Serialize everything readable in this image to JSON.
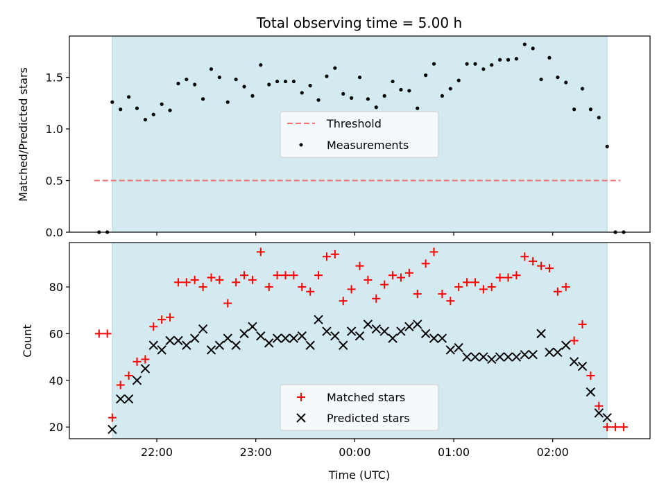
{
  "chart_data": [
    {
      "type": "scatter",
      "panel": "top",
      "title": "Total observing time = 5.00 h",
      "xlabel": "",
      "ylabel": "Matched/Predicted stars",
      "x_axis": "time",
      "xlim": [
        "21:07",
        "02:59"
      ],
      "ylim": [
        0,
        1.9
      ],
      "yticks": [
        0.0,
        0.5,
        1.0,
        1.5
      ],
      "yticklabels": [
        "0.0",
        "0.5",
        "1.0",
        "1.5"
      ],
      "xticks": [
        "22:00",
        "23:00",
        "00:00",
        "01:00",
        "02:00"
      ],
      "shaded_span": [
        "21:33",
        "02:33"
      ],
      "shaded_color": "#d4eaf1",
      "legend_position": "center",
      "series": [
        {
          "name": "Threshold",
          "kind": "dashed-line",
          "color": "#f47070",
          "x": [
            "21:22",
            "02:41"
          ],
          "y": [
            0.5,
            0.5
          ]
        },
        {
          "name": "Measurements",
          "kind": "dots",
          "color": "#000000",
          "x": [
            "21:25",
            "21:30",
            "21:33",
            "21:38",
            "21:43",
            "21:48",
            "21:53",
            "21:58",
            "22:03",
            "22:08",
            "22:13",
            "22:18",
            "22:23",
            "22:28",
            "22:33",
            "22:38",
            "22:43",
            "22:48",
            "22:53",
            "22:58",
            "23:03",
            "23:08",
            "23:13",
            "23:18",
            "23:23",
            "23:28",
            "23:33",
            "23:38",
            "23:43",
            "23:48",
            "23:53",
            "23:58",
            "00:03",
            "00:08",
            "00:13",
            "00:18",
            "00:23",
            "00:28",
            "00:33",
            "00:38",
            "00:43",
            "00:48",
            "00:53",
            "00:58",
            "01:03",
            "01:08",
            "01:13",
            "01:18",
            "01:23",
            "01:28",
            "01:33",
            "01:38",
            "01:43",
            "01:48",
            "01:53",
            "01:58",
            "02:03",
            "02:08",
            "02:13",
            "02:18",
            "02:23",
            "02:28",
            "02:33",
            "02:38",
            "02:43"
          ],
          "y": [
            0.0,
            0.0,
            1.26,
            1.19,
            1.31,
            1.2,
            1.09,
            1.14,
            1.24,
            1.18,
            1.44,
            1.48,
            1.43,
            1.29,
            1.58,
            1.5,
            1.26,
            1.48,
            1.41,
            1.32,
            1.62,
            1.43,
            1.46,
            1.46,
            1.46,
            1.35,
            1.42,
            1.28,
            1.51,
            1.59,
            1.34,
            1.3,
            1.5,
            1.29,
            1.21,
            1.32,
            1.46,
            1.38,
            1.37,
            1.2,
            1.52,
            1.63,
            1.32,
            1.39,
            1.47,
            1.63,
            1.63,
            1.58,
            1.62,
            1.67,
            1.67,
            1.68,
            1.82,
            1.78,
            1.48,
            1.69,
            1.5,
            1.45,
            1.19,
            1.39,
            1.19,
            1.11,
            0.83,
            0.0,
            0.0
          ]
        }
      ]
    },
    {
      "type": "scatter",
      "panel": "bottom",
      "xlabel": "Time (UTC)",
      "ylabel": "Count",
      "x_axis": "time",
      "xlim": [
        "21:07",
        "02:59"
      ],
      "ylim": [
        15,
        99
      ],
      "yticks": [
        20,
        40,
        60,
        80
      ],
      "yticklabels": [
        "20",
        "40",
        "60",
        "80"
      ],
      "xticks": [
        "22:00",
        "23:00",
        "00:00",
        "01:00",
        "02:00"
      ],
      "shaded_span": [
        "21:33",
        "02:33"
      ],
      "shaded_color": "#d4eaf1",
      "legend_position": "bottom-center",
      "series": [
        {
          "name": "Matched stars",
          "kind": "plus",
          "color": "#ff0000",
          "x": [
            "21:25",
            "21:30",
            "21:33",
            "21:38",
            "21:43",
            "21:48",
            "21:53",
            "21:58",
            "22:03",
            "22:08",
            "22:13",
            "22:18",
            "22:23",
            "22:28",
            "22:33",
            "22:38",
            "22:43",
            "22:48",
            "22:53",
            "22:58",
            "23:03",
            "23:08",
            "23:13",
            "23:18",
            "23:23",
            "23:28",
            "23:33",
            "23:38",
            "23:43",
            "23:48",
            "23:53",
            "23:58",
            "00:03",
            "00:08",
            "00:13",
            "00:18",
            "00:23",
            "00:28",
            "00:33",
            "00:38",
            "00:43",
            "00:48",
            "00:53",
            "00:58",
            "01:03",
            "01:08",
            "01:13",
            "01:18",
            "01:23",
            "01:28",
            "01:33",
            "01:38",
            "01:43",
            "01:48",
            "01:53",
            "01:58",
            "02:03",
            "02:08",
            "02:13",
            "02:18",
            "02:23",
            "02:28",
            "02:33",
            "02:38",
            "02:43"
          ],
          "y": [
            60,
            60,
            24,
            38,
            42,
            48,
            49,
            63,
            66,
            67,
            82,
            82,
            83,
            80,
            84,
            83,
            73,
            82,
            85,
            83,
            95,
            80,
            85,
            85,
            85,
            80,
            78,
            85,
            93,
            94,
            74,
            79,
            89,
            83,
            75,
            81,
            85,
            84,
            86,
            77,
            90,
            95,
            77,
            74,
            80,
            82,
            82,
            79,
            80,
            84,
            84,
            85,
            93,
            91,
            89,
            88,
            78,
            80,
            57,
            64,
            42,
            29,
            20,
            20,
            20
          ]
        },
        {
          "name": "Predicted stars",
          "kind": "x",
          "color": "#000000",
          "x": [
            "21:33",
            "21:38",
            "21:43",
            "21:48",
            "21:53",
            "21:58",
            "22:03",
            "22:08",
            "22:13",
            "22:18",
            "22:23",
            "22:28",
            "22:33",
            "22:38",
            "22:43",
            "22:48",
            "22:53",
            "22:58",
            "23:03",
            "23:08",
            "23:13",
            "23:18",
            "23:23",
            "23:28",
            "23:33",
            "23:38",
            "23:43",
            "23:48",
            "23:53",
            "23:58",
            "00:03",
            "00:08",
            "00:13",
            "00:18",
            "00:23",
            "00:28",
            "00:33",
            "00:38",
            "00:43",
            "00:48",
            "00:53",
            "00:58",
            "01:03",
            "01:08",
            "01:13",
            "01:18",
            "01:23",
            "01:28",
            "01:33",
            "01:38",
            "01:43",
            "01:48",
            "01:53",
            "01:58",
            "02:03",
            "02:08",
            "02:13",
            "02:18",
            "02:23",
            "02:28",
            "02:33"
          ],
          "y": [
            19,
            32,
            32,
            40,
            45,
            55,
            53,
            57,
            57,
            55,
            58,
            62,
            53,
            55,
            58,
            55,
            60,
            63,
            59,
            56,
            58,
            58,
            58,
            59,
            55,
            66,
            61,
            59,
            55,
            61,
            59,
            64,
            62,
            61,
            58,
            61,
            63,
            64,
            60,
            58,
            58,
            53,
            54,
            50,
            50,
            50,
            49,
            50,
            50,
            50,
            51,
            51,
            60,
            52,
            52,
            55,
            48,
            46,
            35,
            26,
            24
          ]
        }
      ]
    }
  ]
}
